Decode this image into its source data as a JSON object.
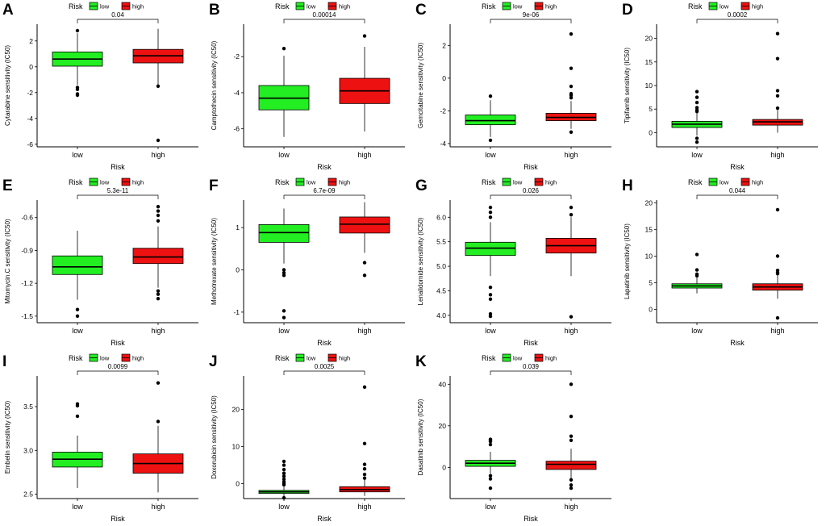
{
  "legend_title": "Risk",
  "legend_labels": [
    "low",
    "high"
  ],
  "colors": {
    "low": "#22ee22",
    "high": "#ee1111"
  },
  "xlabel": "Risk",
  "chart_data": [
    {
      "type": "box",
      "letter": "A",
      "ylabel": "Cytarabine sensitivity (IC50)",
      "pvalue": "0.04",
      "categories": [
        "low",
        "high"
      ],
      "ylim": [
        -6.2,
        3.3
      ],
      "yticks": [
        -6,
        -4,
        -2,
        0,
        2
      ],
      "boxes": [
        {
          "min": -1.4,
          "q1": 0.05,
          "median": 0.6,
          "q3": 1.15,
          "max": 2.6,
          "outliers": [
            2.8,
            -1.6,
            -1.75,
            -2.1,
            -2.2
          ]
        },
        {
          "min": -1.5,
          "q1": 0.3,
          "median": 0.85,
          "q3": 1.35,
          "max": 2.95,
          "outliers": [
            -1.5,
            -5.7
          ]
        }
      ]
    },
    {
      "type": "box",
      "letter": "B",
      "ylabel": "Camptothecin sensitivity (IC50)",
      "pvalue": "0.00014",
      "categories": [
        "low",
        "high"
      ],
      "ylim": [
        -7.0,
        -0.2
      ],
      "yticks": [
        -6,
        -4,
        -2
      ],
      "boxes": [
        {
          "min": -6.45,
          "q1": -4.95,
          "median": -4.3,
          "q3": -3.6,
          "max": -1.95,
          "outliers": [
            -1.55
          ]
        },
        {
          "min": -6.15,
          "q1": -4.6,
          "median": -3.9,
          "q3": -3.2,
          "max": -1.45,
          "outliers": [
            -0.85
          ]
        }
      ]
    },
    {
      "type": "box",
      "letter": "C",
      "ylabel": "Gemcitabine sensitivity (IC50)",
      "pvalue": "9e-06",
      "categories": [
        "low",
        "high"
      ],
      "ylim": [
        -4.2,
        3.3
      ],
      "yticks": [
        -4,
        -2,
        0,
        2
      ],
      "boxes": [
        {
          "min": -3.6,
          "q1": -2.85,
          "median": -2.6,
          "q3": -2.25,
          "max": -1.35,
          "outliers": [
            -1.1,
            -3.8
          ]
        },
        {
          "min": -3.1,
          "q1": -2.6,
          "median": -2.4,
          "q3": -2.15,
          "max": -1.4,
          "outliers": [
            2.7,
            0.6,
            -0.5,
            -0.95,
            -1.05,
            -1.2,
            -3.3
          ]
        }
      ]
    },
    {
      "type": "box",
      "letter": "D",
      "ylabel": "Tipifarnib sensitivity (IC50)",
      "pvalue": "0.0002",
      "categories": [
        "low",
        "high"
      ],
      "ylim": [
        -3,
        23
      ],
      "yticks": [
        0,
        5,
        10,
        15,
        20
      ],
      "boxes": [
        {
          "min": -0.6,
          "q1": 1.1,
          "median": 1.8,
          "q3": 2.4,
          "max": 4.2,
          "outliers": [
            8.7,
            7.5,
            6.4,
            5.3,
            4.8,
            4.5,
            -1.2,
            -2.0
          ]
        },
        {
          "min": 0.0,
          "q1": 1.6,
          "median": 2.3,
          "q3": 2.8,
          "max": 4.8,
          "outliers": [
            21,
            15.7,
            8.9,
            7.8,
            5.2
          ]
        }
      ]
    },
    {
      "type": "box",
      "letter": "E",
      "ylabel": "Mitomycin.C sensitivity (IC50)",
      "pvalue": "5.3e-11",
      "categories": [
        "low",
        "high"
      ],
      "ylim": [
        -1.56,
        -0.44
      ],
      "yticks": [
        -1.5,
        -1.2,
        -0.9,
        -0.6
      ],
      "boxes": [
        {
          "min": -1.35,
          "q1": -1.12,
          "median": -1.05,
          "q3": -0.95,
          "max": -0.72,
          "outliers": [
            -1.44,
            -1.5
          ]
        },
        {
          "min": -1.24,
          "q1": -1.02,
          "median": -0.96,
          "q3": -0.88,
          "max": -0.68,
          "outliers": [
            -0.5,
            -0.54,
            -0.58,
            -0.63,
            -1.27,
            -1.3,
            -1.34
          ]
        }
      ]
    },
    {
      "type": "box",
      "letter": "F",
      "ylabel": "Methotrexate sensitivity (IC50)",
      "pvalue": "6.7e-09",
      "categories": [
        "low",
        "high"
      ],
      "ylim": [
        -1.25,
        1.65
      ],
      "yticks": [
        -1,
        0,
        1
      ],
      "boxes": [
        {
          "min": 0.15,
          "q1": 0.65,
          "median": 0.88,
          "q3": 1.07,
          "max": 1.45,
          "outliers": [
            0.0,
            -0.07,
            -0.13,
            -0.97,
            -1.13
          ]
        },
        {
          "min": 0.4,
          "q1": 0.87,
          "median": 1.08,
          "q3": 1.25,
          "max": 1.6,
          "outliers": [
            0.17,
            -0.13
          ]
        }
      ]
    },
    {
      "type": "box",
      "letter": "G",
      "ylabel": "Lenalidomide sensitivity (IC50)",
      "pvalue": "0.026",
      "categories": [
        "low",
        "high"
      ],
      "ylim": [
        3.85,
        6.35
      ],
      "yticks": [
        4.0,
        4.5,
        5.0,
        5.5,
        6.0
      ],
      "boxes": [
        {
          "min": 4.8,
          "q1": 5.22,
          "median": 5.37,
          "q3": 5.49,
          "max": 5.9,
          "outliers": [
            6.2,
            6.1,
            6.0,
            4.57,
            4.42,
            4.33,
            4.03,
            3.98
          ]
        },
        {
          "min": 4.8,
          "q1": 5.27,
          "median": 5.42,
          "q3": 5.57,
          "max": 6.0,
          "outliers": [
            6.2,
            6.05,
            3.97
          ]
        }
      ]
    },
    {
      "type": "box",
      "letter": "H",
      "ylabel": "Lapatinib sensitivity (IC50)",
      "pvalue": "0.044",
      "categories": [
        "low",
        "high"
      ],
      "ylim": [
        -2.5,
        20.5
      ],
      "yticks": [
        0,
        5,
        10,
        15,
        20
      ],
      "boxes": [
        {
          "min": 3.0,
          "q1": 4.0,
          "median": 4.4,
          "q3": 4.8,
          "max": 6.0,
          "outliers": [
            10.3,
            7.4,
            6.6,
            6.3
          ]
        },
        {
          "min": 2.0,
          "q1": 3.6,
          "median": 4.2,
          "q3": 4.8,
          "max": 6.5,
          "outliers": [
            18.7,
            10,
            7.3,
            6.9,
            6.7,
            -1.6
          ]
        }
      ]
    },
    {
      "type": "box",
      "letter": "I",
      "ylabel": "Embelin sensitivity (IC50)",
      "pvalue": "0.0099",
      "categories": [
        "low",
        "high"
      ],
      "ylim": [
        2.45,
        3.85
      ],
      "yticks": [
        2.5,
        3.0,
        3.5
      ],
      "boxes": [
        {
          "min": 2.57,
          "q1": 2.81,
          "median": 2.9,
          "q3": 2.98,
          "max": 3.17,
          "outliers": [
            3.53,
            3.51,
            3.39
          ]
        },
        {
          "min": 2.52,
          "q1": 2.74,
          "median": 2.85,
          "q3": 2.96,
          "max": 3.28,
          "outliers": [
            3.77,
            3.33
          ]
        }
      ]
    },
    {
      "type": "box",
      "letter": "J",
      "ylabel": "Doxorubicin sensitivity (IC50)",
      "pvalue": "0.0025",
      "categories": [
        "low",
        "high"
      ],
      "ylim": [
        -4,
        29
      ],
      "yticks": [
        0,
        10,
        20
      ],
      "boxes": [
        {
          "min": -3.5,
          "q1": -2.6,
          "median": -2.2,
          "q3": -1.8,
          "max": -0.8,
          "outliers": [
            6,
            5,
            3.8,
            2.8,
            2,
            1.2,
            0.5,
            0,
            -0.3,
            -3.8
          ]
        },
        {
          "min": -3.3,
          "q1": -2.2,
          "median": -1.6,
          "q3": -0.8,
          "max": 1.0,
          "outliers": [
            26,
            10.8,
            5.2,
            4,
            2.5,
            1.5
          ]
        }
      ]
    },
    {
      "type": "box",
      "letter": "K",
      "ylabel": "Dasatinib sensitivity (IC50)",
      "pvalue": "0.039",
      "categories": [
        "low",
        "high"
      ],
      "ylim": [
        -15,
        44
      ],
      "yticks": [
        0,
        20,
        40
      ],
      "boxes": [
        {
          "min": -3.0,
          "q1": 0.5,
          "median": 2.0,
          "q3": 3.4,
          "max": 7.5,
          "outliers": [
            13.5,
            13,
            12.5,
            11,
            -4,
            -5.5,
            -10
          ]
        },
        {
          "min": -7.0,
          "q1": -1.0,
          "median": 1.5,
          "q3": 3.0,
          "max": 9.0,
          "outliers": [
            40,
            24.5,
            15,
            13,
            -6,
            -8.5,
            -10
          ]
        }
      ]
    }
  ]
}
